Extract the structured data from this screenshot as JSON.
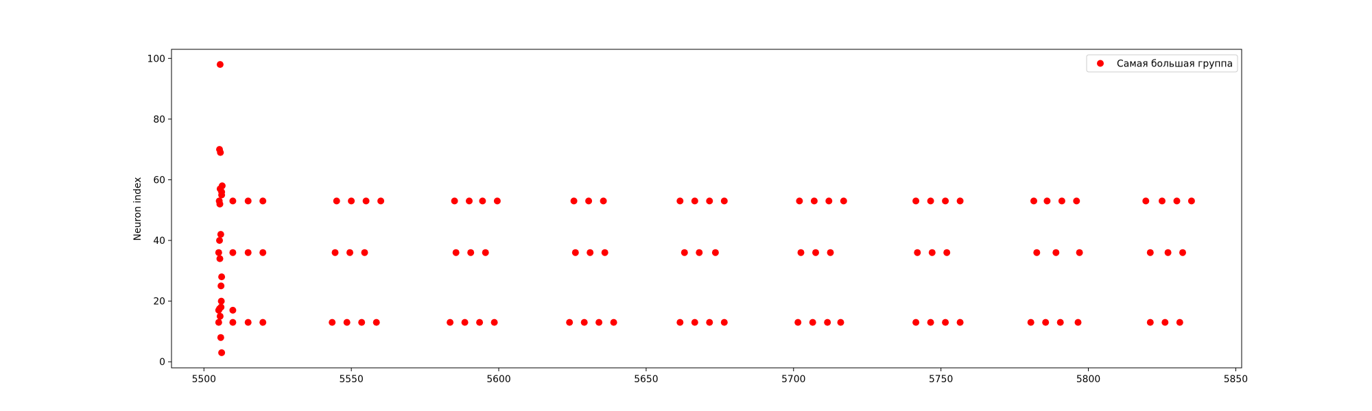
{
  "chart_data": {
    "type": "scatter",
    "title": "",
    "xlabel": "",
    "ylabel": "Neuron index",
    "xlim": [
      5489,
      5852
    ],
    "ylim": [
      -2,
      103
    ],
    "xticks": [
      5500,
      5550,
      5600,
      5650,
      5700,
      5750,
      5800,
      5850
    ],
    "yticks": [
      0,
      20,
      40,
      60,
      80,
      100
    ],
    "grid": false,
    "legend_position": "top-right",
    "series": [
      {
        "name": "Самая большая группа",
        "color": "#ff0000",
        "points": [
          [
            5505.5,
            98
          ],
          [
            5505.3,
            70
          ],
          [
            5505.6,
            69
          ],
          [
            5505.5,
            57
          ],
          [
            5506.2,
            58
          ],
          [
            5506.0,
            56
          ],
          [
            5506.0,
            55
          ],
          [
            5505.2,
            53
          ],
          [
            5505.4,
            52
          ],
          [
            5505.7,
            42
          ],
          [
            5505.3,
            40
          ],
          [
            5505.0,
            36
          ],
          [
            5505.4,
            34
          ],
          [
            5506.0,
            28
          ],
          [
            5505.8,
            25
          ],
          [
            5505.9,
            20
          ],
          [
            5505.8,
            18
          ],
          [
            5505.0,
            17
          ],
          [
            5505.3,
            17.5
          ],
          [
            5505.5,
            15
          ],
          [
            5505.0,
            13
          ],
          [
            5505.7,
            8
          ],
          [
            5506.0,
            3
          ],
          [
            5509.8,
            53
          ],
          [
            5515.0,
            53
          ],
          [
            5520.0,
            53
          ],
          [
            5509.8,
            36
          ],
          [
            5515.0,
            36
          ],
          [
            5520.0,
            36
          ],
          [
            5509.8,
            17
          ],
          [
            5509.8,
            13
          ],
          [
            5515.0,
            13
          ],
          [
            5520.0,
            13
          ],
          [
            5545.0,
            53
          ],
          [
            5550.0,
            53
          ],
          [
            5555.0,
            53
          ],
          [
            5560.0,
            53
          ],
          [
            5544.5,
            36
          ],
          [
            5549.5,
            36
          ],
          [
            5554.5,
            36
          ],
          [
            5543.5,
            13
          ],
          [
            5548.5,
            13
          ],
          [
            5553.5,
            13
          ],
          [
            5558.5,
            13
          ],
          [
            5585.0,
            53
          ],
          [
            5590.0,
            53
          ],
          [
            5594.5,
            53
          ],
          [
            5599.5,
            53
          ],
          [
            5585.5,
            36
          ],
          [
            5590.5,
            36
          ],
          [
            5595.5,
            36
          ],
          [
            5583.5,
            13
          ],
          [
            5588.5,
            13
          ],
          [
            5593.5,
            13
          ],
          [
            5598.5,
            13
          ],
          [
            5625.5,
            53
          ],
          [
            5630.5,
            53
          ],
          [
            5635.5,
            53
          ],
          [
            5626.0,
            36
          ],
          [
            5631.0,
            36
          ],
          [
            5636.0,
            36
          ],
          [
            5624.0,
            13
          ],
          [
            5629.0,
            13
          ],
          [
            5634.0,
            13
          ],
          [
            5639.0,
            13
          ],
          [
            5661.5,
            53
          ],
          [
            5666.5,
            53
          ],
          [
            5671.5,
            53
          ],
          [
            5676.5,
            53
          ],
          [
            5663.0,
            36
          ],
          [
            5668.0,
            36
          ],
          [
            5673.5,
            36
          ],
          [
            5661.5,
            13
          ],
          [
            5666.5,
            13
          ],
          [
            5671.5,
            13
          ],
          [
            5676.5,
            13
          ],
          [
            5702.0,
            53
          ],
          [
            5707.0,
            53
          ],
          [
            5712.0,
            53
          ],
          [
            5717.0,
            53
          ],
          [
            5702.5,
            36
          ],
          [
            5707.5,
            36
          ],
          [
            5712.5,
            36
          ],
          [
            5701.5,
            13
          ],
          [
            5706.5,
            13
          ],
          [
            5711.5,
            13
          ],
          [
            5716.0,
            13
          ],
          [
            5741.5,
            53
          ],
          [
            5746.5,
            53
          ],
          [
            5751.5,
            53
          ],
          [
            5756.5,
            53
          ],
          [
            5742.0,
            36
          ],
          [
            5747.0,
            36
          ],
          [
            5752.0,
            36
          ],
          [
            5741.5,
            13
          ],
          [
            5746.5,
            13
          ],
          [
            5751.5,
            13
          ],
          [
            5756.5,
            13
          ],
          [
            5781.5,
            53
          ],
          [
            5786.0,
            53
          ],
          [
            5791.0,
            53
          ],
          [
            5796.0,
            53
          ],
          [
            5782.5,
            36
          ],
          [
            5789.0,
            36
          ],
          [
            5797.0,
            36
          ],
          [
            5780.5,
            13
          ],
          [
            5785.5,
            13
          ],
          [
            5790.5,
            13
          ],
          [
            5796.5,
            13
          ],
          [
            5819.5,
            53
          ],
          [
            5825.0,
            53
          ],
          [
            5830.0,
            53
          ],
          [
            5835.0,
            53
          ],
          [
            5821.0,
            36
          ],
          [
            5827.0,
            36
          ],
          [
            5832.0,
            36
          ],
          [
            5821.0,
            13
          ],
          [
            5826.0,
            13
          ],
          [
            5831.0,
            13
          ]
        ]
      }
    ]
  }
}
